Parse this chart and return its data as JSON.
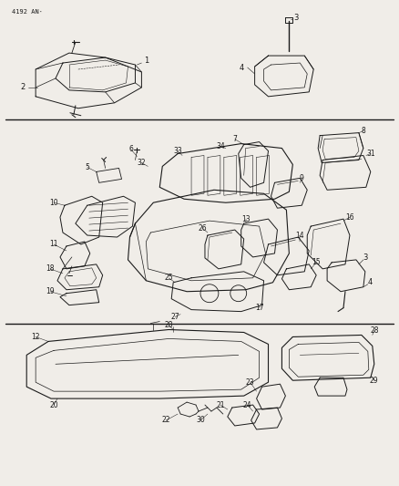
{
  "bg_color": "#f0ede8",
  "line_color": "#1a1a1a",
  "fig_width": 4.38,
  "fig_height": 5.33,
  "dpi": 100,
  "header_text": "4192 AN·"
}
